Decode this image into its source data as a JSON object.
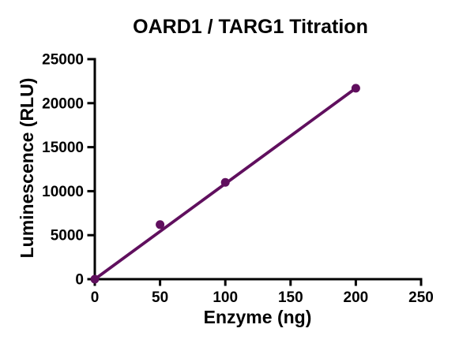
{
  "chart_data": {
    "type": "scatter",
    "title": "OARD1 / TARG1 Titration",
    "xlabel": "Enzyme (ng)",
    "ylabel": "Luminescence (RLU)",
    "points": {
      "x": [
        0,
        50,
        100,
        200
      ],
      "y": [
        0,
        6200,
        11000,
        21700
      ]
    },
    "fit_line": {
      "x": [
        0,
        200
      ],
      "y": [
        0,
        21700
      ]
    },
    "xlim": [
      0,
      250
    ],
    "ylim": [
      0,
      25000
    ],
    "xticks": [
      0,
      50,
      100,
      150,
      200,
      250
    ],
    "yticks": [
      0,
      5000,
      10000,
      15000,
      20000,
      25000
    ],
    "grid": false,
    "legend": "none",
    "colors": {
      "series": "#600F5E",
      "axis": "#000000",
      "text": "#000000",
      "background": "#ffffff"
    }
  }
}
